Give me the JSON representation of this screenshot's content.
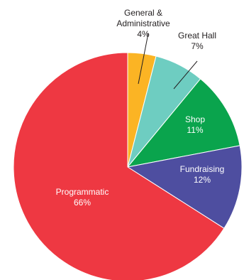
{
  "chart_data": {
    "type": "pie",
    "slices": [
      {
        "label_lines": [
          "General &",
          "Administrative"
        ],
        "value_text": "4%",
        "value": 4,
        "color": "#fbb424",
        "text_color": "#231f20"
      },
      {
        "label_lines": [
          "Great Hall"
        ],
        "value_text": "7%",
        "value": 7,
        "color": "#6ecdc1",
        "text_color": "#231f20"
      },
      {
        "label_lines": [
          "Shop"
        ],
        "value_text": "11%",
        "value": 11,
        "color": "#0aa44d",
        "text_color": "#ffffff"
      },
      {
        "label_lines": [
          "Fundraising"
        ],
        "value_text": "12%",
        "value": 12,
        "color": "#4e4ea0",
        "text_color": "#ffffff"
      },
      {
        "label_lines": [
          "Programmatic"
        ],
        "value_text": "66%",
        "value": 66,
        "color": "#ee3842",
        "text_color": "#ffffff"
      }
    ]
  }
}
